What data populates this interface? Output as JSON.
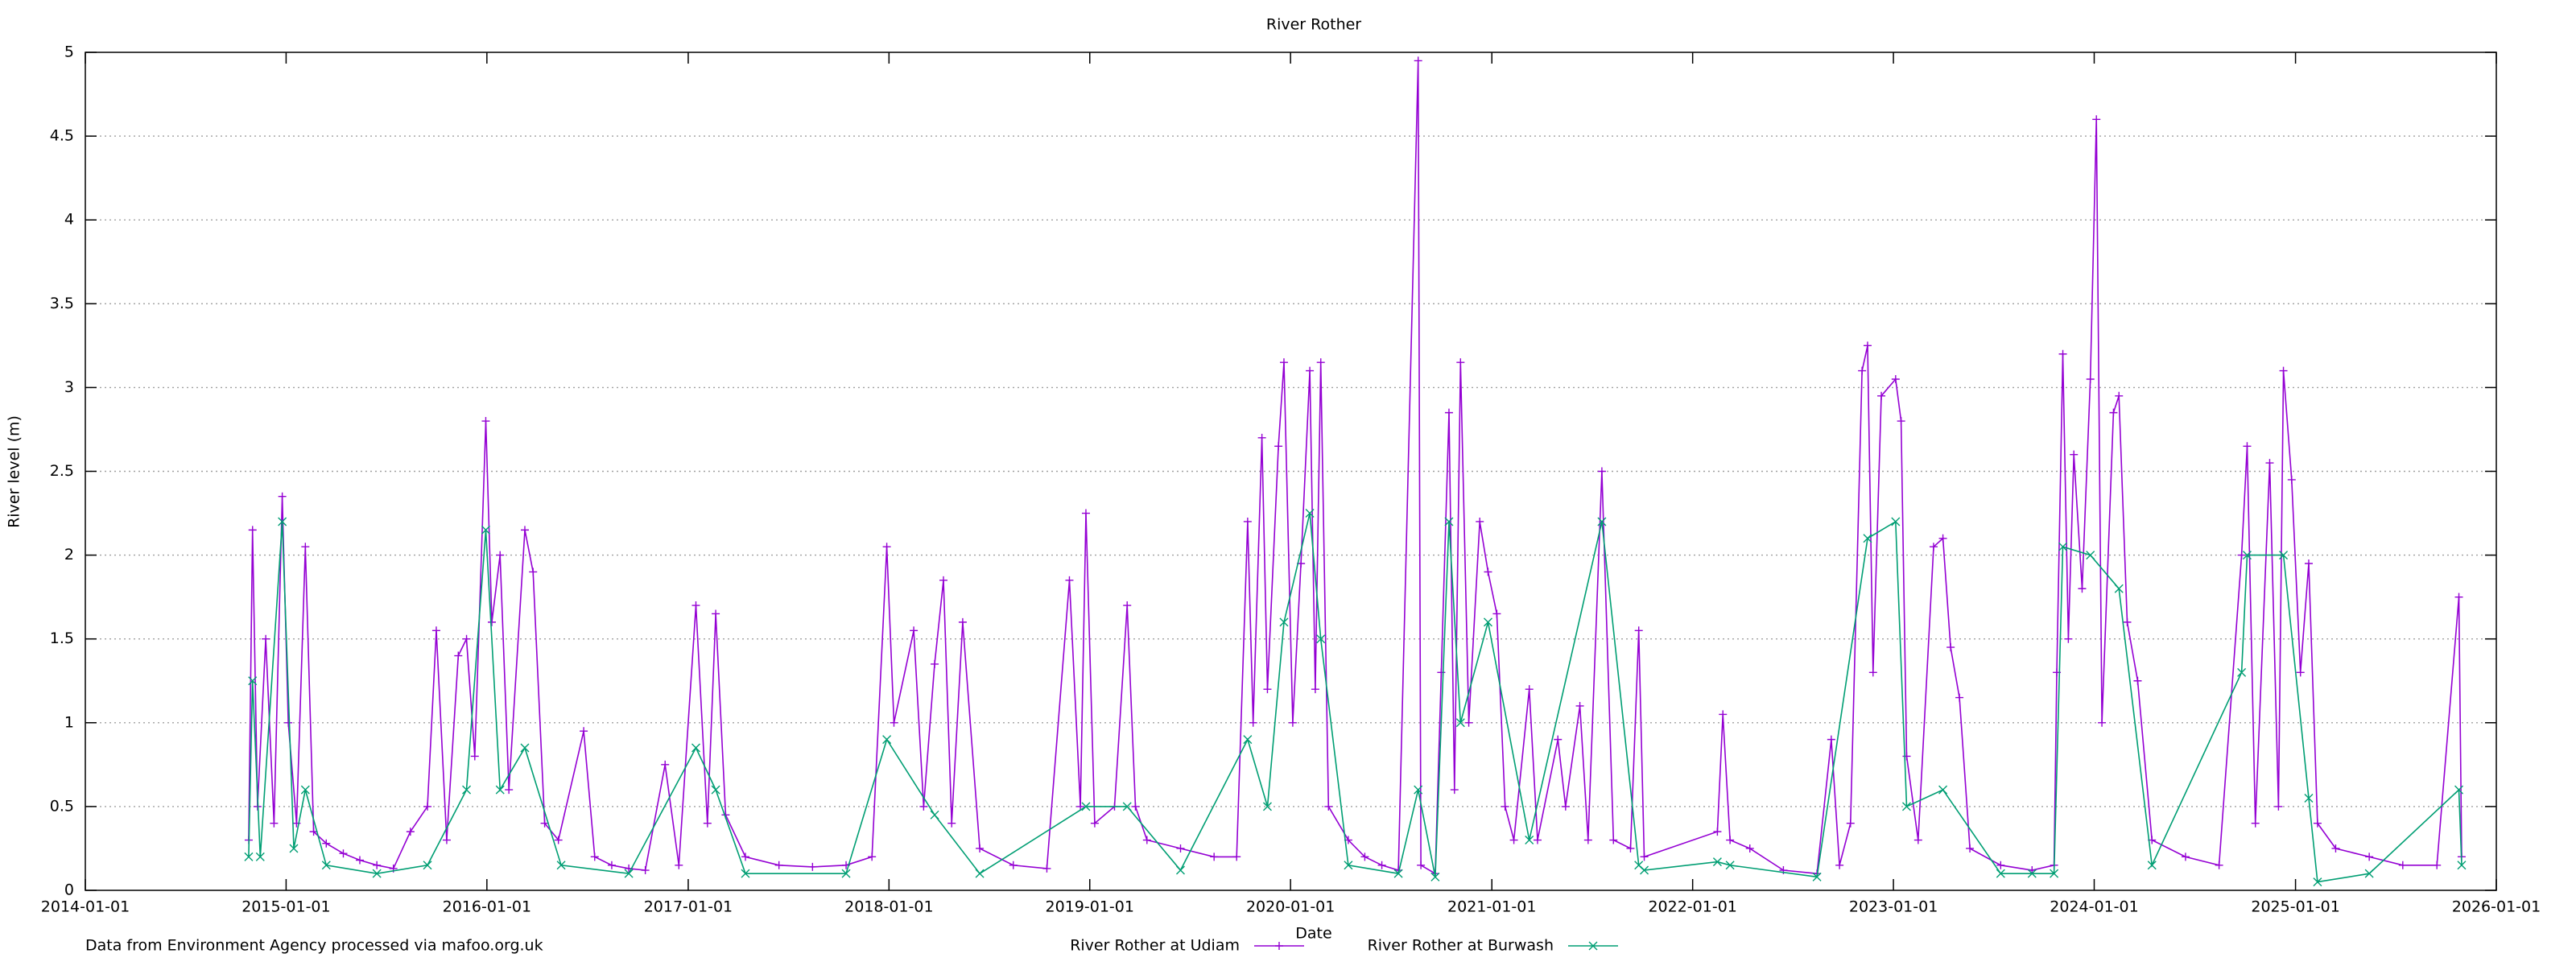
{
  "chart_data": {
    "type": "line",
    "title": "River Rother",
    "x_label": "Date",
    "y_label": "River level (m)",
    "annotation": "Data from Environment Agency processed via mafoo.org.uk",
    "xlim": [
      "2014-01-01",
      "2026-01-01"
    ],
    "xticks": [
      "2014-01-01",
      "2015-01-01",
      "2016-01-01",
      "2017-01-01",
      "2018-01-01",
      "2019-01-01",
      "2020-01-01",
      "2021-01-01",
      "2022-01-01",
      "2023-01-01",
      "2024-01-01",
      "2025-01-01",
      "2026-01-01"
    ],
    "ylim": [
      0,
      5
    ],
    "yticks": [
      0,
      0.5,
      1,
      1.5,
      2,
      2.5,
      3,
      3.5,
      4,
      4.5,
      5
    ],
    "grid": true,
    "legend": "bottom",
    "series": [
      {
        "name": "River Rother at Udiam",
        "color": "#9400d3",
        "marker": "plus",
        "x": [
          "2014-10-25",
          "2014-11-01",
          "2014-11-10",
          "2014-11-25",
          "2014-12-10",
          "2014-12-25",
          "2015-01-05",
          "2015-01-20",
          "2015-02-05",
          "2015-02-20",
          "2015-03-15",
          "2015-04-15",
          "2015-05-15",
          "2015-06-15",
          "2015-07-15",
          "2015-08-15",
          "2015-09-15",
          "2015-10-01",
          "2015-10-20",
          "2015-11-10",
          "2015-11-25",
          "2015-12-10",
          "2015-12-30",
          "2016-01-10",
          "2016-01-25",
          "2016-02-10",
          "2016-03-10",
          "2016-03-25",
          "2016-04-15",
          "2016-05-10",
          "2016-06-25",
          "2016-07-15",
          "2016-08-15",
          "2016-09-15",
          "2016-10-15",
          "2016-11-20",
          "2016-12-15",
          "2017-01-15",
          "2017-02-05",
          "2017-02-20",
          "2017-03-10",
          "2017-04-15",
          "2017-06-15",
          "2017-08-15",
          "2017-10-15",
          "2017-12-01",
          "2017-12-28",
          "2018-01-10",
          "2018-02-15",
          "2018-03-05",
          "2018-03-25",
          "2018-04-10",
          "2018-04-25",
          "2018-05-15",
          "2018-06-15",
          "2018-08-15",
          "2018-10-15",
          "2018-11-25",
          "2018-12-15",
          "2018-12-25",
          "2019-01-10",
          "2019-02-15",
          "2019-03-10",
          "2019-03-25",
          "2019-04-15",
          "2019-06-15",
          "2019-08-15",
          "2019-09-25",
          "2019-10-15",
          "2019-10-25",
          "2019-11-10",
          "2019-11-20",
          "2019-12-10",
          "2019-12-20",
          "2020-01-05",
          "2020-01-20",
          "2020-02-05",
          "2020-02-15",
          "2020-02-25",
          "2020-03-10",
          "2020-04-15",
          "2020-05-15",
          "2020-06-15",
          "2020-07-15",
          "2020-08-20",
          "2020-08-25",
          "2020-09-20",
          "2020-10-01",
          "2020-10-15",
          "2020-10-25",
          "2020-11-05",
          "2020-11-20",
          "2020-12-10",
          "2020-12-25",
          "2021-01-10",
          "2021-01-25",
          "2021-02-10",
          "2021-03-10",
          "2021-03-25",
          "2021-05-01",
          "2021-05-15",
          "2021-06-10",
          "2021-06-25",
          "2021-07-20",
          "2021-08-10",
          "2021-09-10",
          "2021-09-25",
          "2021-10-05",
          "2022-02-15",
          "2022-02-25",
          "2022-03-10",
          "2022-04-15",
          "2022-06-15",
          "2022-08-15",
          "2022-09-10",
          "2022-09-25",
          "2022-10-15",
          "2022-11-05",
          "2022-11-15",
          "2022-11-25",
          "2022-12-10",
          "2023-01-05",
          "2023-01-15",
          "2023-01-25",
          "2023-02-15",
          "2023-03-15",
          "2023-04-01",
          "2023-04-15",
          "2023-05-01",
          "2023-05-20",
          "2023-07-15",
          "2023-09-10",
          "2023-10-20",
          "2023-10-25",
          "2023-11-05",
          "2023-11-15",
          "2023-11-25",
          "2023-12-10",
          "2023-12-25",
          "2024-01-05",
          "2024-01-15",
          "2024-02-05",
          "2024-02-15",
          "2024-03-01",
          "2024-03-20",
          "2024-04-15",
          "2024-06-15",
          "2024-08-15",
          "2024-09-25",
          "2024-10-05",
          "2024-10-20",
          "2024-11-15",
          "2024-12-01",
          "2024-12-10",
          "2024-12-25",
          "2025-01-10",
          "2025-01-25",
          "2025-02-10",
          "2025-03-15",
          "2025-05-15",
          "2025-07-15",
          "2025-09-15",
          "2025-10-25",
          "2025-10-30"
        ],
        "values": [
          0.3,
          2.15,
          0.5,
          1.5,
          0.4,
          2.35,
          1.0,
          0.4,
          2.05,
          0.35,
          0.28,
          0.22,
          0.18,
          0.15,
          0.13,
          0.35,
          0.5,
          1.55,
          0.3,
          1.4,
          1.5,
          0.8,
          2.8,
          1.6,
          2.0,
          0.6,
          2.15,
          1.9,
          0.4,
          0.3,
          0.95,
          0.2,
          0.15,
          0.13,
          0.12,
          0.75,
          0.15,
          1.7,
          0.4,
          1.65,
          0.45,
          0.2,
          0.15,
          0.14,
          0.15,
          0.2,
          2.05,
          1.0,
          1.55,
          0.5,
          1.35,
          1.85,
          0.4,
          1.6,
          0.25,
          0.15,
          0.13,
          1.85,
          0.5,
          2.25,
          0.4,
          0.5,
          1.7,
          0.5,
          0.3,
          0.25,
          0.2,
          0.2,
          2.2,
          1.0,
          2.7,
          1.2,
          2.65,
          3.15,
          1.0,
          1.95,
          3.1,
          1.2,
          3.15,
          0.5,
          0.3,
          0.2,
          0.15,
          0.12,
          4.95,
          0.15,
          0.1,
          1.3,
          2.85,
          0.6,
          3.15,
          1.0,
          2.2,
          1.9,
          1.65,
          0.5,
          0.3,
          1.2,
          0.3,
          0.9,
          0.5,
          1.1,
          0.3,
          2.5,
          0.3,
          0.25,
          1.55,
          0.2,
          0.35,
          1.05,
          0.3,
          0.25,
          0.12,
          0.1,
          0.9,
          0.15,
          0.4,
          3.1,
          3.25,
          1.3,
          2.95,
          3.05,
          2.8,
          0.8,
          0.3,
          2.05,
          2.1,
          1.45,
          1.15,
          0.25,
          0.15,
          0.12,
          0.15,
          1.3,
          3.2,
          1.5,
          2.6,
          1.8,
          3.05,
          4.6,
          1.0,
          2.85,
          2.95,
          1.6,
          1.25,
          0.3,
          0.2,
          0.15,
          2.0,
          2.65,
          0.4,
          2.55,
          0.5,
          3.1,
          2.45,
          1.3,
          1.95,
          0.4,
          0.25,
          0.2,
          0.15,
          0.15,
          1.75,
          0.2
        ]
      },
      {
        "name": "River Rother at Burwash",
        "color": "#009e73",
        "marker": "cross",
        "x": [
          "2014-10-25",
          "2014-11-01",
          "2014-11-15",
          "2014-12-25",
          "2015-01-15",
          "2015-02-05",
          "2015-03-15",
          "2015-06-15",
          "2015-09-15",
          "2015-11-25",
          "2015-12-30",
          "2016-01-25",
          "2016-03-10",
          "2016-05-15",
          "2016-09-15",
          "2017-01-15",
          "2017-02-20",
          "2017-04-15",
          "2017-10-15",
          "2017-12-28",
          "2018-03-25",
          "2018-06-15",
          "2018-12-25",
          "2019-03-10",
          "2019-06-15",
          "2019-10-15",
          "2019-11-20",
          "2019-12-20",
          "2020-02-05",
          "2020-02-25",
          "2020-04-15",
          "2020-07-15",
          "2020-08-20",
          "2020-09-20",
          "2020-10-15",
          "2020-11-05",
          "2020-12-25",
          "2021-03-10",
          "2021-07-20",
          "2021-09-25",
          "2021-10-05",
          "2022-02-15",
          "2022-03-10",
          "2022-08-15",
          "2022-11-15",
          "2023-01-05",
          "2023-01-25",
          "2023-04-01",
          "2023-07-15",
          "2023-09-10",
          "2023-10-20",
          "2023-11-05",
          "2023-12-25",
          "2024-02-15",
          "2024-04-15",
          "2024-09-25",
          "2024-10-05",
          "2024-12-10",
          "2025-01-25",
          "2025-02-10",
          "2025-05-15",
          "2025-10-25",
          "2025-10-30"
        ],
        "values": [
          0.2,
          1.25,
          0.2,
          2.2,
          0.25,
          0.6,
          0.15,
          0.1,
          0.15,
          0.6,
          2.15,
          0.6,
          0.85,
          0.15,
          0.1,
          0.85,
          0.6,
          0.1,
          0.1,
          0.9,
          0.45,
          0.1,
          0.5,
          0.5,
          0.12,
          0.9,
          0.5,
          1.6,
          2.25,
          1.5,
          0.15,
          0.1,
          0.6,
          0.08,
          2.2,
          1.0,
          1.6,
          0.3,
          2.2,
          0.15,
          0.12,
          0.17,
          0.15,
          0.08,
          2.1,
          2.2,
          0.5,
          0.6,
          0.1,
          0.1,
          0.1,
          2.05,
          2.0,
          1.8,
          0.15,
          1.3,
          2.0,
          2.0,
          0.55,
          0.05,
          0.1,
          0.6,
          0.15
        ]
      }
    ]
  }
}
